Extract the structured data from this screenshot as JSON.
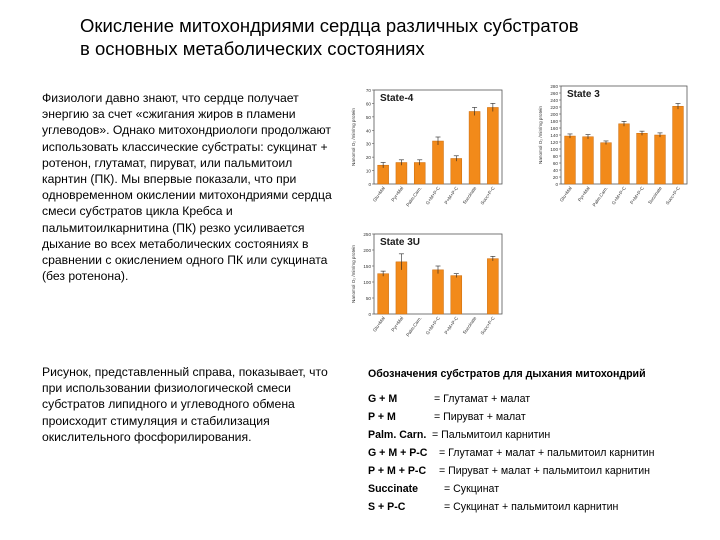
{
  "title": {
    "line1": "Окисление митохондриями сердца различных субстратов",
    "line2": "в основных метаболических состояниях"
  },
  "paragraphs": [
    "Физиологи давно знают, что сердце получает энергию за счет «сжигания жиров в пламени углеводов». Однако митохондриологи продолжают использовать классические субстраты: сукцинат + ротенон, глутамат, пируват, или пальмитоил карнтин (ПК). Мы впервые показали, что при одновременном окислении митохондриями сердца смеси субстратов цикла Кребса и пальмитоилкарнитина (ПК) резко усиливается дыхание во всех метаболических состояниях в сравнении с окислением одного ПК или сукцината (без ротенона).",
    "Рисунок, представленный справа, показывает, что при использовании физиологической смеси субстратов липидного и углеводного обмена происходит стимуляция и стабилизация окислительного фосфорилирования."
  ],
  "legend": {
    "title": "Обозначения субстратов для дыхания митохондрий",
    "rows": [
      {
        "code": "G + M",
        "desc": "= Глутамат + малат"
      },
      {
        "code": "P + M",
        "desc": "= Пируват + малат"
      },
      {
        "code": "Palm. Carn.",
        "desc": "= Пальмитоил карнитин"
      },
      {
        "code": "G + M + P-C",
        "desc": "= Глутамат + малат + пальмитоил карнитин"
      },
      {
        "code": "P + M + P-C",
        "desc": "= Пируват + малат + пальмитоил карнитин"
      },
      {
        "code": "Succinate",
        "desc": "= Сукцинат"
      },
      {
        "code": "S + P-C",
        "desc": "= Сукцинат + пальмитоил карнитин"
      }
    ]
  },
  "colors": {
    "bar": "#f28a1a",
    "bar_edge": "#c96a0c"
  },
  "chart_data": [
    {
      "type": "bar",
      "title": "State-4",
      "ylabel": "Nanomol O₂ /min/mg protein",
      "categories": [
        "Glu+Mal",
        "Pyr+Mal",
        "Palm.Carn.",
        "G+M+P-C",
        "P+M+P-C",
        "Succinate",
        "Succ+P-C"
      ],
      "values": [
        14,
        16,
        16,
        32,
        19,
        54,
        57
      ],
      "errors": [
        2,
        2,
        2,
        3,
        2,
        3,
        3
      ],
      "ylim": [
        0,
        70
      ],
      "yticks": [
        "0",
        "10",
        "20",
        "30",
        "40",
        "50",
        "60",
        "70"
      ]
    },
    {
      "type": "bar",
      "title": "State 3",
      "ylabel": "Nanomol O₂ /min/mg protein",
      "categories": [
        "Glu+Mal",
        "Pyr+Mal",
        "Palm.Carn.",
        "G+M+P-C",
        "P+M+P-C",
        "Succinate",
        "Succ+P-C"
      ],
      "values": [
        137,
        135,
        118,
        172,
        145,
        140,
        222
      ],
      "errors": [
        6,
        6,
        5,
        7,
        6,
        6,
        8
      ],
      "ylim": [
        0,
        280
      ],
      "yticks": [
        "0",
        "20",
        "40",
        "60",
        "80",
        "100",
        "120",
        "140",
        "160",
        "180",
        "200",
        "220",
        "240",
        "260",
        "280"
      ]
    },
    {
      "type": "bar",
      "title": "State 3U",
      "ylabel": "Nanomol O₂ /min/mg protein",
      "categories": [
        "Glu+Mal",
        "Pyr+Mal",
        "Palm.Carn.",
        "G+M+P-C",
        "P+M+P-C",
        "Succinate",
        "Succ+P-C"
      ],
      "values": [
        126,
        163,
        0,
        138,
        120,
        0,
        173
      ],
      "errors": [
        8,
        25,
        0,
        12,
        6,
        0,
        7
      ],
      "ylim": [
        0,
        250
      ],
      "yticks": [
        "0",
        "50",
        "100",
        "150",
        "200",
        "250"
      ]
    }
  ]
}
